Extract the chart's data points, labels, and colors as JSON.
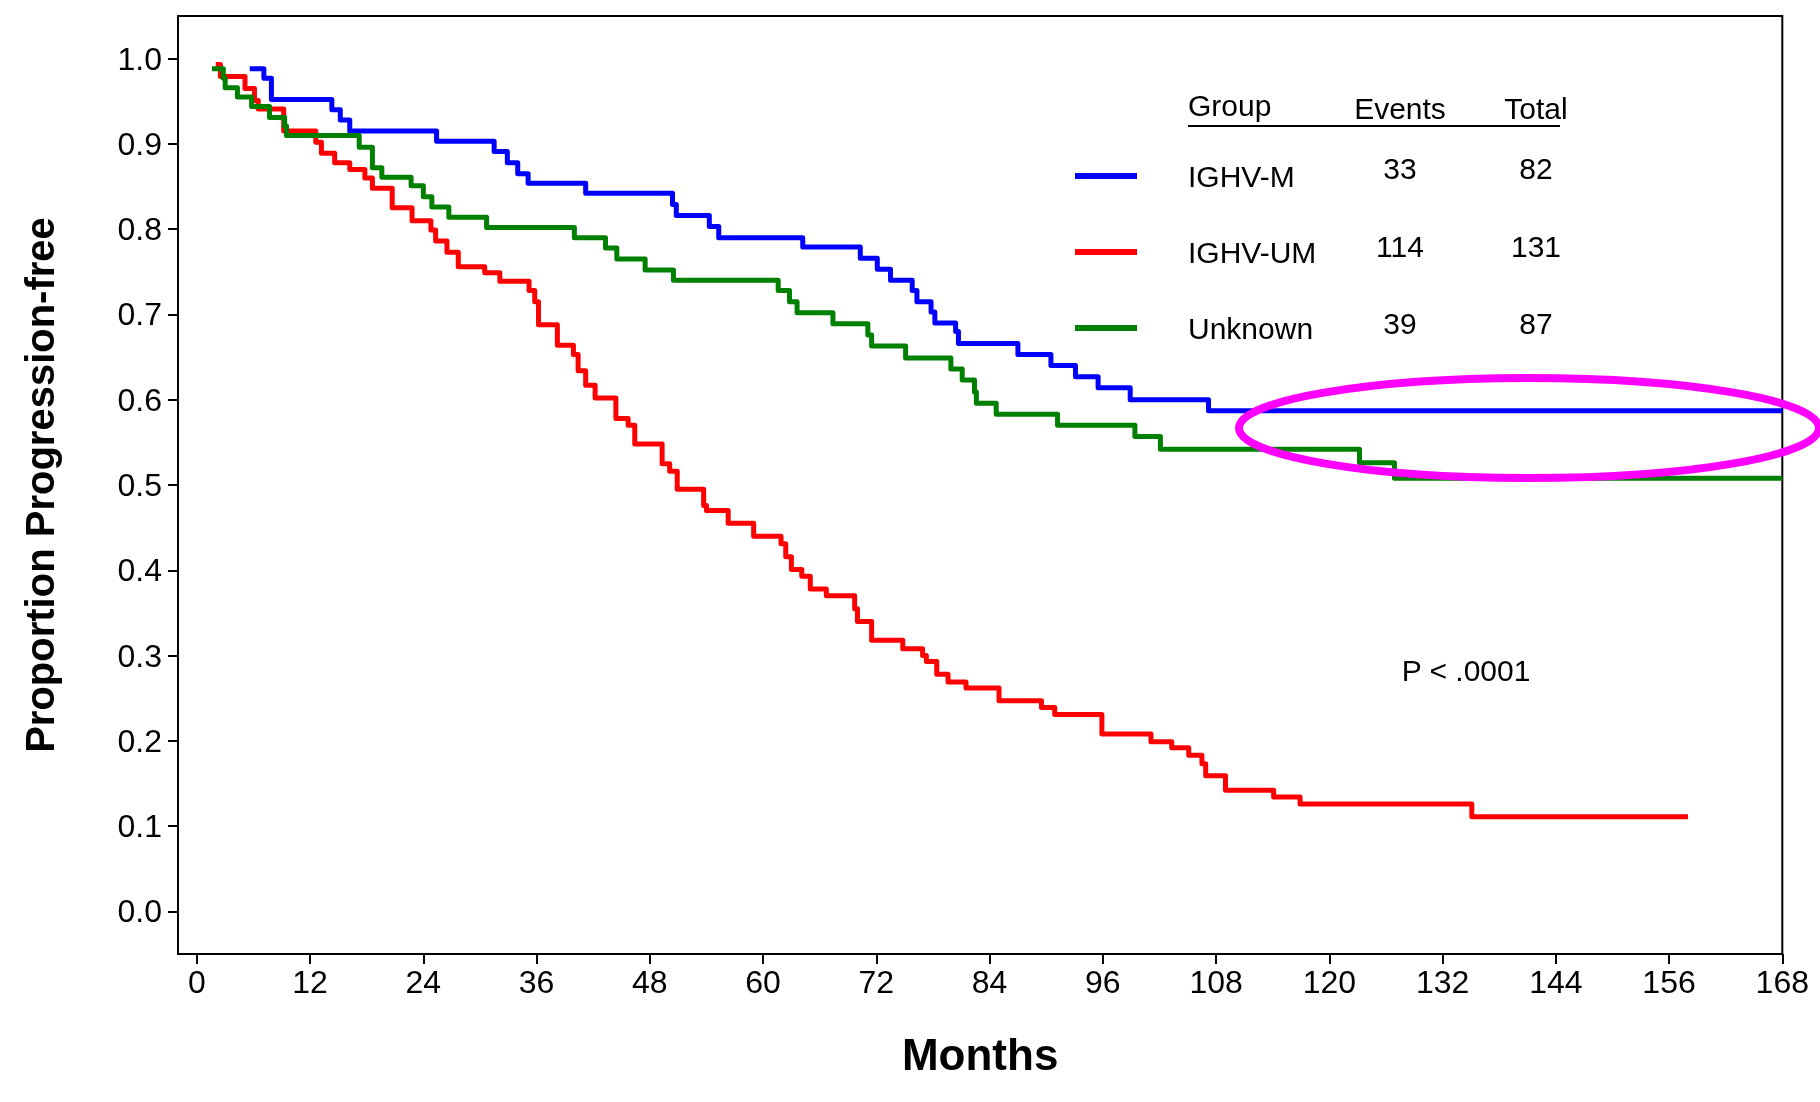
{
  "chart_data": {
    "type": "step",
    "xlabel": "Months",
    "ylabel": "Proportion Progression-free",
    "legend_title": "Group",
    "legend": "top right",
    "grid": false,
    "line_style": "solid",
    "marker": "none",
    "xlim": [
      -2,
      168
    ],
    "xticks": [
      0,
      12,
      24,
      36,
      48,
      60,
      72,
      84,
      96,
      108,
      120,
      132,
      144,
      156,
      168
    ],
    "ylim": [
      -0.05,
      1.05
    ],
    "yticks": [
      {
        "value": 0,
        "label": "0.0"
      },
      {
        "value": 0.1,
        "label": "0.1"
      },
      {
        "value": 0.2,
        "label": "0.2"
      },
      {
        "value": 0.3,
        "label": "0.3"
      },
      {
        "value": 0.4,
        "label": "0.4"
      },
      {
        "value": 0.5,
        "label": "0.5"
      },
      {
        "value": 0.6,
        "label": "0.6"
      },
      {
        "value": 0.7,
        "label": "0.7"
      },
      {
        "value": 0.8,
        "label": "0.8"
      },
      {
        "value": 0.9,
        "label": "0.9"
      },
      {
        "value": 1,
        "label": "1.0"
      }
    ],
    "annotations": [
      "Events",
      "Total",
      "33",
      "82",
      "114",
      "131",
      "39",
      "87",
      "P < .0001"
    ],
    "series": [
      {
        "name": "IGHV-M",
        "color": "#0000ff",
        "x": [
          5.6,
          7.1,
          7.9,
          14.3,
          15.2,
          16.2,
          25.4,
          31.5,
          32.9,
          34.0,
          35.1,
          41.2,
          50.4,
          50.8,
          54.3,
          55.3,
          64.2,
          70.3,
          72.1,
          73.5,
          75.8,
          76.3,
          77.8,
          78.2,
          80.4,
          80.7,
          87.0,
          90.5,
          93.1,
          95.5,
          98.9,
          107.2,
          168
        ],
        "values": [
          0.988,
          0.977,
          0.952,
          0.94,
          0.928,
          0.915,
          0.903,
          0.891,
          0.878,
          0.865,
          0.854,
          0.842,
          0.829,
          0.816,
          0.803,
          0.79,
          0.779,
          0.766,
          0.753,
          0.74,
          0.728,
          0.715,
          0.703,
          0.69,
          0.68,
          0.666,
          0.653,
          0.64,
          0.627,
          0.614,
          0.6,
          0.587,
          0.587
        ]
      },
      {
        "name": "IGHV-UM",
        "color": "#ff0000",
        "x": [
          2.0,
          2.5,
          5.1,
          6.1,
          6.5,
          9.2,
          12.6,
          13.2,
          14.6,
          16.2,
          17.8,
          18.6,
          20.7,
          22.8,
          24.8,
          25.3,
          26.5,
          27.7,
          30.5,
          32.1,
          35.2,
          35.8,
          36.2,
          38.2,
          39.9,
          40.4,
          41.2,
          42.2,
          44.4,
          45.7,
          46.4,
          49.3,
          50.1,
          50.9,
          53.7,
          54.0,
          56.3,
          59.0,
          61.9,
          62.4,
          63.0,
          64.1,
          65.0,
          66.7,
          69.7,
          70.0,
          71.5,
          74.8,
          76.9,
          77.3,
          78.4,
          79.6,
          81.5,
          85.0,
          89.5,
          90.9,
          95.9,
          101.1,
          103.3,
          105.1,
          106.5,
          106.9,
          109.0,
          114.1,
          116.9,
          135.1,
          158.0
        ],
        "values": [
          0.993,
          0.979,
          0.965,
          0.951,
          0.941,
          0.915,
          0.902,
          0.889,
          0.878,
          0.87,
          0.86,
          0.848,
          0.825,
          0.81,
          0.799,
          0.786,
          0.773,
          0.756,
          0.749,
          0.739,
          0.728,
          0.715,
          0.688,
          0.664,
          0.653,
          0.634,
          0.617,
          0.602,
          0.578,
          0.57,
          0.548,
          0.525,
          0.516,
          0.495,
          0.476,
          0.47,
          0.455,
          0.44,
          0.431,
          0.416,
          0.401,
          0.393,
          0.378,
          0.37,
          0.355,
          0.34,
          0.318,
          0.308,
          0.3,
          0.293,
          0.278,
          0.269,
          0.262,
          0.247,
          0.239,
          0.231,
          0.208,
          0.199,
          0.192,
          0.183,
          0.173,
          0.159,
          0.142,
          0.134,
          0.126,
          0.111,
          0.111
        ]
      },
      {
        "name": "Unknown",
        "color": "#008000",
        "x": [
          1.6,
          2.8,
          3.0,
          4.3,
          5.8,
          7.7,
          9.3,
          9.5,
          17.2,
          18.6,
          19.6,
          22.7,
          24.0,
          24.9,
          26.7,
          30.7,
          40.0,
          43.3,
          44.5,
          47.5,
          50.5,
          61.6,
          62.8,
          63.6,
          67.4,
          71.1,
          71.5,
          75.1,
          79.9,
          81.1,
          82.4,
          82.6,
          84.7,
          91.2,
          99.4,
          102.1,
          123.2,
          126.9,
          168
        ],
        "values": [
          0.988,
          0.977,
          0.966,
          0.955,
          0.944,
          0.931,
          0.921,
          0.91,
          0.896,
          0.872,
          0.861,
          0.851,
          0.838,
          0.826,
          0.814,
          0.802,
          0.79,
          0.778,
          0.765,
          0.752,
          0.74,
          0.728,
          0.715,
          0.702,
          0.689,
          0.676,
          0.663,
          0.649,
          0.636,
          0.623,
          0.609,
          0.596,
          0.583,
          0.57,
          0.557,
          0.542,
          0.526,
          0.508,
          0.508
        ]
      }
    ]
  }
}
